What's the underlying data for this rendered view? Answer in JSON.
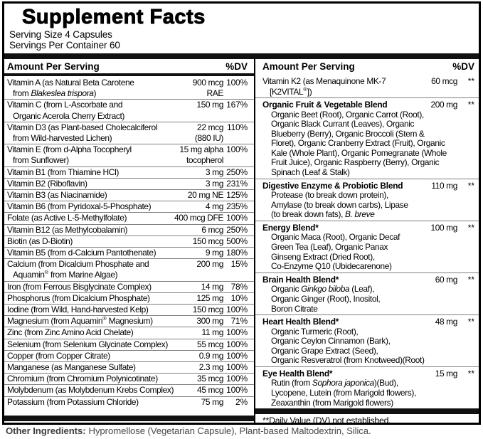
{
  "panel": {
    "title": "Supplement Facts",
    "serving_size": "Serving Size 4 Capsules",
    "servings_per_container": "Servings Per Container 60",
    "header": {
      "amount_label": "Amount Per Serving",
      "dv_label": "%DV"
    },
    "left_column": {
      "rows": [
        {
          "name": "Vitamin A (as Natural Beta Carotene\nfrom ~Blakeslea trispora~)",
          "amount": "900 mcg\nRAE",
          "dv": "100%"
        },
        {
          "name": "Vitamin C (from L-Ascorbate and\nOrganic Acerola Cherry Extract)",
          "amount": "150 mg",
          "dv": "167%"
        },
        {
          "name": "Vitamin D3 (as Plant-based Cholecalciferol\nfrom Wild-harvested Lichen)",
          "amount": "22 mcg\n(880 IU)",
          "dv": "110%"
        },
        {
          "name": "Vitamin E (from d-Alpha Tocopheryl\nfrom Sunflower)",
          "amount": "15 mg alpha\ntocopherol",
          "dv": "100%"
        },
        {
          "name": "Vitamin B1 (from Thiamine HCl)",
          "amount": "3 mg",
          "dv": "250%"
        },
        {
          "name": "Vitamin B2 (Riboflavin)",
          "amount": "3 mg",
          "dv": "231%"
        },
        {
          "name": "Vitamin B3 (as Niacinamide)",
          "amount": "20 mg NE",
          "dv": "125%"
        },
        {
          "name": "Vitamin B6 (from Pyridoxal-5-Phosphate)",
          "amount": "4 mg",
          "dv": "235%"
        },
        {
          "name": "Folate (as Active L-5-Methylfolate)",
          "amount": "400 mcg DFE",
          "dv": "100%"
        },
        {
          "name": "Vitamin B12 (as Methylcobalamin)",
          "amount": "6 mcg",
          "dv": "250%"
        },
        {
          "name": "Biotin (as D-Biotin)",
          "amount": "150 mcg",
          "dv": "500%"
        },
        {
          "name": "Vitamin B5 (from d-Calcium Pantothenate)",
          "amount": "9 mg",
          "dv": "180%"
        },
        {
          "name": "Calcium (from Dicalcium Phosphate and\nAquamin® from Marine Algae)",
          "amount": "200 mg",
          "dv": "15%"
        },
        {
          "name": "Iron (from Ferrous Bisglycinate Complex)",
          "amount": "14 mg",
          "dv": "78%"
        },
        {
          "name": "Phosphorus (from Dicalcium Phosphate)",
          "amount": "125 mg",
          "dv": "10%"
        },
        {
          "name": "Iodine (from Wild, Hand-harvested Kelp)",
          "amount": "150 mcg",
          "dv": "100%"
        },
        {
          "name": "Magnesium (from Aquamin® Magnesium)",
          "amount": "300 mg",
          "dv": "71%"
        },
        {
          "name": "Zinc (from Zinc Amino Acid Chelate)",
          "amount": "11 mg",
          "dv": "100%"
        },
        {
          "name": "Selenium (from Selenium Glycinate Complex)",
          "amount": "55 mcg",
          "dv": "100%"
        },
        {
          "name": "Copper (from Copper Citrate)",
          "amount": "0.9 mg",
          "dv": "100%"
        },
        {
          "name": "Manganese (as Manganese Sulfate)",
          "amount": "2.3 mg",
          "dv": "100%"
        },
        {
          "name": "Chromium (from Chromium Polynicotinate)",
          "amount": "35 mcg",
          "dv": "100%"
        },
        {
          "name": "Molybdenum (as Molybdenum Krebs Complex)",
          "amount": "45 mcg",
          "dv": "100%"
        },
        {
          "name": "Potassium (from Potassium Chloride)",
          "amount": "75 mg",
          "dv": "2%"
        }
      ]
    },
    "right_column": {
      "rows": [
        {
          "name": "Vitamin K2 (as Menaquinone MK-7\n[K2VITAL®])",
          "amount": "60 mcg",
          "dv": "**",
          "bold": false,
          "ingredients": ""
        },
        {
          "name": "Organic Fruit & Vegetable Blend",
          "amount": "200 mg",
          "dv": "**",
          "bold": true,
          "ingredients": "Organic Beet (Root), Organic Carrot (Root),\nOrganic Black Currant (Leaves), Organic\nBlueberry (Berry), Organic Broccoli (Stem &\nFloret), Organic Cranberry Extract (Fruit), Organic\nKale (Whole Plant), Organic Pomegranate (Whole\nFruit Juice), Organic Raspberry (Berry), Organic\nSpinach (Leaf & Stalk)"
        },
        {
          "name": "Digestive Enzyme & Probiotic Blend",
          "amount": "110 mg",
          "dv": "**",
          "bold": true,
          "ingredients": "Protease (to break down protein),\nAmylase (to break down carbs), Lipase\n(to break down fats), ~B. breve~"
        },
        {
          "name": "Energy Blend*",
          "amount": "100 mg",
          "dv": "**",
          "bold": true,
          "ingredients": "Organic Maca (Root), Organic Decaf\nGreen Tea (Leaf), Organic Panax\nGinseng Extract (Dried Root),\nCo-Enzyme Q10 (Ubidecarenone)"
        },
        {
          "name": "Brain Health Blend*",
          "amount": "60 mg",
          "dv": "**",
          "bold": true,
          "ingredients": "Organic ~Ginkgo biloba~ (Leaf),\nOrganic Ginger (Root), Inositol,\nBoron Citrate"
        },
        {
          "name": "Heart Health Blend*",
          "amount": "48 mg",
          "dv": "**",
          "bold": true,
          "ingredients": "Organic Turmeric (Root),\nOrganic Ceylon Cinnamon (Bark),\nOrganic Grape Extract (Seed),\nOrganic Resveratrol (from Knotweed)(Root)"
        },
        {
          "name": "Eye Health Blend*",
          "amount": "15 mg",
          "dv": "**",
          "bold": true,
          "ingredients": "Rutin (from ~Sophora japonica~)(Bud),\nLycopene, Lutein (from Marigold flowers),\nZeaxanthin (from Marigold flowers)"
        }
      ],
      "footnote": "**Daily Value (DV) not established."
    }
  },
  "other_ingredients": {
    "label": "Other Ingredients:",
    "text": "Hypromellose (Vegetarian Capsule), Plant-based Maltodextrin, Silica."
  },
  "colors": {
    "text": "#000000",
    "bar": "#111111",
    "row_separator": "#7f7f7f",
    "border": "#000000",
    "background": "#ffffff",
    "footer_text": "#46484b"
  }
}
